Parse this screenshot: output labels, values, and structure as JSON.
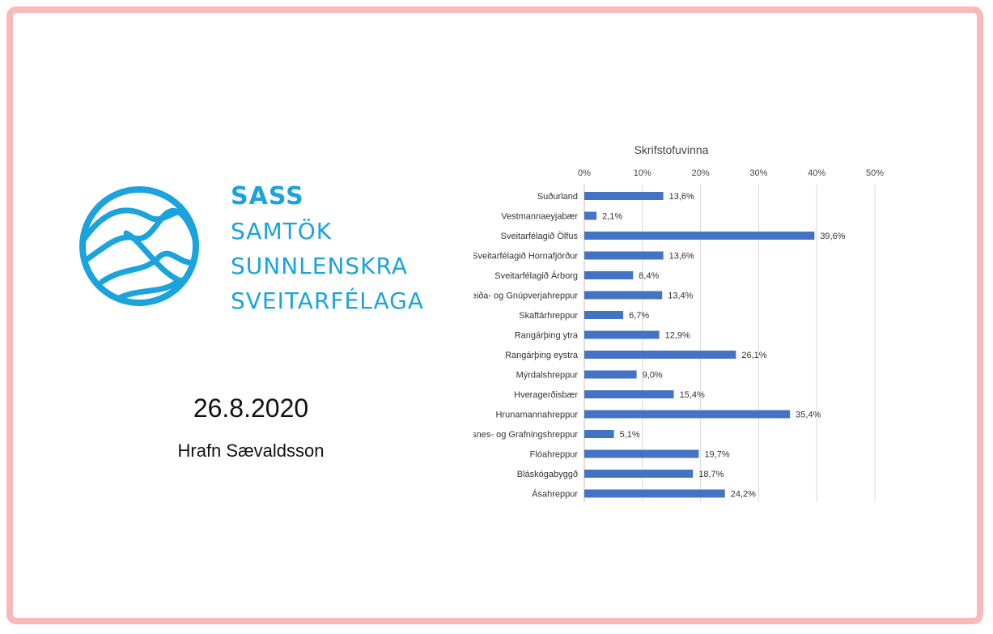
{
  "logo": {
    "abbr": "SASS",
    "line1": "SAMTÖK",
    "line2": "SUNNLENSKRA",
    "line3": "SVEITARFÉLAGA",
    "color": "#1aa3dc"
  },
  "date": "26.8.2020",
  "author": "Hrafn Sævaldsson",
  "chart_data": {
    "type": "bar",
    "orientation": "horizontal",
    "title": "Skrifstofuvinna",
    "categories": [
      "Suðurland",
      "Vestmannaeyjabær",
      "Sveitarfélagið Ölfus",
      "Sveitarfélagið Hornafjörður",
      "Sveitarfélagið Árborg",
      "Skeiða- og Gnúpverjahreppur",
      "Skaftárhreppur",
      "Rangárþing ytra",
      "Rangárþing eystra",
      "Mýrdalshreppur",
      "Hveragerðisbær",
      "Hrunamannahreppur",
      "Grímsnes- og Grafningshreppur",
      "Flóahreppur",
      "Bláskógabyggð",
      "Ásahreppur"
    ],
    "values": [
      13.6,
      2.1,
      39.6,
      13.6,
      8.4,
      13.4,
      6.7,
      12.9,
      26.1,
      9.0,
      15.4,
      35.4,
      5.1,
      19.7,
      18.7,
      24.2
    ],
    "value_labels": [
      "13,6%",
      "2,1%",
      "39,6%",
      "13,6%",
      "8,4%",
      "13,4%",
      "6,7%",
      "12,9%",
      "26,1%",
      "9,0%",
      "15,4%",
      "35,4%",
      "5,1%",
      "19,7%",
      "18,7%",
      "24,2%"
    ],
    "xlim": [
      0,
      50
    ],
    "ticks": [
      "0%",
      "10%",
      "20%",
      "30%",
      "40%",
      "50%"
    ],
    "grid": true,
    "bar_color": "#4472c4",
    "axis_position": "top"
  }
}
